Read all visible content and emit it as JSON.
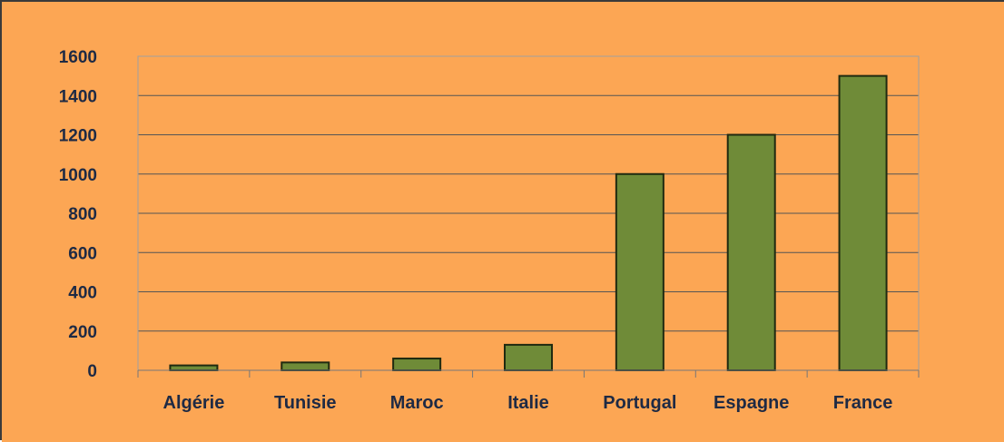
{
  "colors": {
    "background": "#fca654",
    "bar_fill": "#6f8b38",
    "bar_stroke": "#1f2a10",
    "gridline": "#555555",
    "axis": "#777777",
    "plot_border": "#a0a0a0",
    "text": "#1e2a44"
  },
  "chart_data": {
    "type": "bar",
    "title": "",
    "xlabel": "",
    "ylabel": "",
    "categories": [
      "Algérie",
      "Tunisie",
      "Maroc",
      "Italie",
      "Portugal",
      "Espagne",
      "France"
    ],
    "values": [
      25,
      40,
      60,
      130,
      1000,
      1200,
      1500
    ],
    "ylim": [
      0,
      1600
    ],
    "yticks": [
      "0",
      "200",
      "400",
      "600",
      "800",
      "1000",
      "1200",
      "1400",
      "1600"
    ],
    "grid": true,
    "legend": "none"
  }
}
